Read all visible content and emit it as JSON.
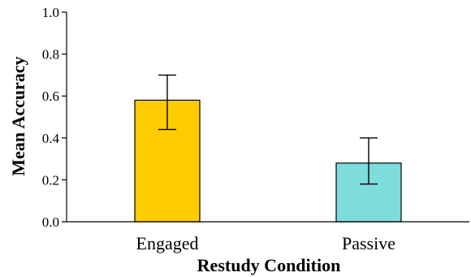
{
  "chart_data": {
    "type": "bar",
    "categories": [
      "Engaged",
      "Passive"
    ],
    "values": [
      0.58,
      0.28
    ],
    "error_low": [
      0.44,
      0.18
    ],
    "error_high": [
      0.7,
      0.4
    ],
    "colors": [
      "#FFCC00",
      "#7DDCDC"
    ],
    "xlabel": "Restudy Condition",
    "ylabel": "Mean Accuracy",
    "ylim": [
      0,
      1.0
    ],
    "yticks": [
      "0.0",
      "0.2",
      "0.4",
      "0.6",
      "0.8",
      "1.0"
    ],
    "grid": false
  }
}
